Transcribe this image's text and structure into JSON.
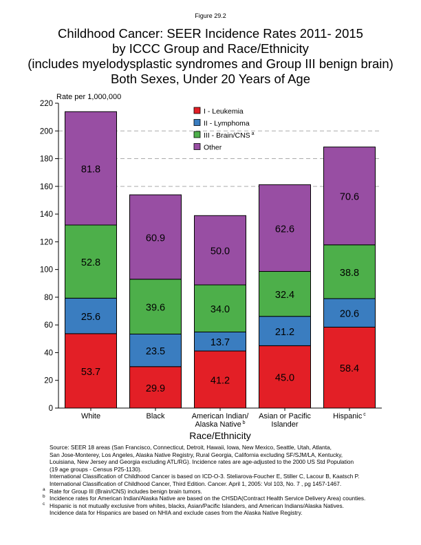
{
  "figure_label": "Figure 29.2",
  "title_lines": [
    "Childhood Cancer: SEER Incidence Rates 2011- 2015",
    "by ICCC Group and Race/Ethnicity",
    "(includes myelodysplastic syndromes and Group III benign brain)",
    "Both Sexes, Under 20 Years of Age"
  ],
  "chart_data": {
    "type": "bar",
    "stacked": true,
    "categories": [
      "White",
      "Black",
      "American Indian/\nAlaska Native",
      "Asian or Pacific\nIslander",
      "Hispanic"
    ],
    "category_superscripts": [
      "",
      "",
      "b",
      "",
      "c"
    ],
    "series": [
      {
        "name": "I - Leukemia",
        "color": "#e31f26",
        "values": [
          53.7,
          29.9,
          41.2,
          45.0,
          58.4
        ]
      },
      {
        "name": "II - Lymphoma",
        "color": "#3a7dc0",
        "values": [
          25.6,
          23.5,
          13.7,
          21.2,
          20.6
        ]
      },
      {
        "name": "III - Brain/CNS",
        "superscript": "a",
        "color": "#4daf4a",
        "values": [
          52.8,
          39.6,
          34.0,
          32.4,
          38.8
        ]
      },
      {
        "name": "Other",
        "color": "#984ea3",
        "values": [
          81.8,
          60.9,
          50.0,
          62.6,
          70.6
        ]
      }
    ],
    "ylabel": "Rate per 1,000,000",
    "xlabel": "Race/Ethnicity",
    "ylim": [
      0,
      220
    ],
    "yticks": [
      0,
      20,
      40,
      60,
      80,
      100,
      120,
      140,
      160,
      180,
      200,
      220
    ],
    "legend": "top-center"
  },
  "notes": [
    "Source:  SEER 18 areas (San Francisco, Connecticut, Detroit, Hawaii, Iowa, New Mexico, Seattle, Utah, Atlanta,",
    "San Jose-Monterey, Los Angeles, Alaska Native Registry, Rural Georgia, California excluding SF/SJM/LA, Kentucky,",
    "Louisiana, New Jersey and Georgia excluding ATL/RG). Incidence rates are age-adjusted to the 2000 US Std Population",
    "(19 age groups - Census P25-1130).",
    "International Classification of Childhood Cancer is based on ICD-O-3.  Steliarova-Foucher E, Stiller C, Lacour B, Kaatsch P.",
    "International Classification of Childhood Cancer, Third Edition.  Cancer. April 1, 2005: Vol 103, No. 7 , pg 1457-1467."
  ],
  "footnotes": [
    {
      "mark": "a",
      "text": "Rate for Group III (Brain/CNS) includes benign brain tumors."
    },
    {
      "mark": "b",
      "text": "Incidence rates for American Indian/Alaska Native are based on the CHSDA(Contract Health Service Delivery Area) counties."
    },
    {
      "mark": "c",
      "text": "Hispanic is not mutually exclusive from whites, blacks, Asian/Pacific Islanders, and American Indians/Alaska Natives."
    },
    {
      "mark": "",
      "text": "Incidence data for Hispanics are based on NHIA and exclude cases from the Alaska Native Registry."
    }
  ]
}
